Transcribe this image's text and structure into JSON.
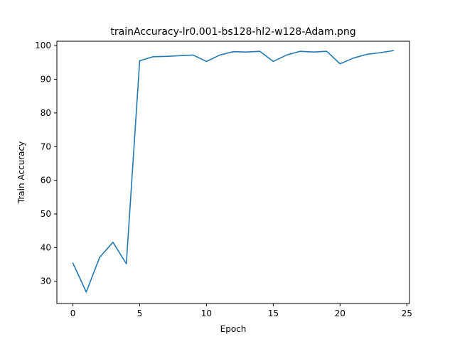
{
  "chart_data": {
    "type": "line",
    "title": "trainAccuracy-lr0.001-bs128-hl2-w128-Adam.png",
    "xlabel": "Epoch",
    "ylabel": "Train Accuracy",
    "xlim": [
      -1.2,
      25.2
    ],
    "ylim": [
      23.4,
      101.3
    ],
    "xticks": [
      0,
      5,
      10,
      15,
      20,
      25
    ],
    "yticks": [
      30,
      40,
      50,
      60,
      70,
      80,
      90,
      100
    ],
    "grid": false,
    "series": [
      {
        "color": "#1f77b4",
        "x": [
          0,
          1,
          2,
          3,
          4,
          5,
          6,
          7,
          8,
          9,
          10,
          11,
          12,
          13,
          14,
          15,
          16,
          17,
          18,
          19,
          20,
          21,
          22,
          23,
          24
        ],
        "y": [
          35.4,
          26.8,
          37.1,
          41.6,
          35.2,
          95.5,
          96.7,
          96.8,
          97.0,
          97.2,
          95.3,
          97.2,
          98.2,
          98.1,
          98.3,
          95.3,
          97.2,
          98.3,
          98.1,
          98.3,
          94.6,
          96.3,
          97.4,
          97.9,
          98.5
        ]
      }
    ]
  }
}
